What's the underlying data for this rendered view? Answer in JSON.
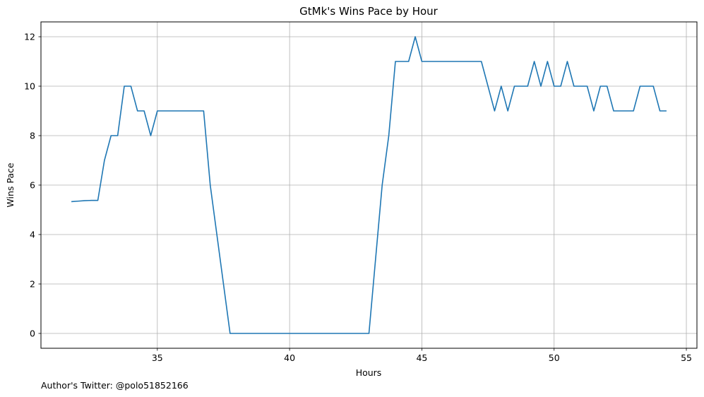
{
  "footer": {
    "text": "Author's Twitter: @polo51852166"
  },
  "chart_data": {
    "type": "line",
    "title": "GtMk's Wins Pace by Hour",
    "xlabel": "Hours",
    "ylabel": "Wins Pace",
    "xlim": [
      30.6,
      55.4
    ],
    "ylim": [
      -0.6,
      12.6
    ],
    "xticks": [
      35,
      40,
      45,
      50,
      55
    ],
    "yticks": [
      0,
      2,
      4,
      6,
      8,
      10,
      12
    ],
    "grid": true,
    "color": "#1f77b4",
    "series": [
      {
        "x": [
          31.75,
          32.0,
          32.25,
          32.5,
          32.75,
          33.0,
          33.25,
          33.5,
          33.75,
          34.0,
          34.25,
          34.5,
          34.75,
          35.0,
          35.25,
          35.5,
          35.75,
          36.0,
          36.25,
          36.5,
          36.75,
          37.0,
          37.25,
          37.5,
          37.75,
          38.0,
          38.25,
          38.5,
          38.75,
          39.0,
          39.25,
          39.5,
          39.75,
          40.0,
          40.25,
          40.5,
          40.75,
          41.0,
          41.25,
          41.5,
          41.75,
          42.0,
          42.25,
          42.5,
          42.75,
          43.0,
          43.25,
          43.5,
          43.75,
          44.0,
          44.25,
          44.5,
          44.75,
          45.0,
          45.25,
          45.5,
          45.75,
          46.0,
          46.25,
          46.5,
          46.75,
          47.0,
          47.25,
          47.5,
          47.75,
          48.0,
          48.25,
          48.5,
          48.75,
          49.0,
          49.25,
          49.5,
          49.75,
          50.0,
          50.25,
          50.5,
          50.75,
          51.0,
          51.25,
          51.5,
          51.75,
          52.0,
          52.25,
          52.5,
          52.75,
          53.0,
          53.25,
          53.5,
          53.75,
          54.0,
          54.25
        ],
        "values": [
          5.33,
          5.35,
          5.37,
          5.38,
          5.38,
          7.0,
          8.0,
          8.0,
          10.0,
          10.0,
          9.0,
          9.0,
          8.0,
          9.0,
          9.0,
          9.0,
          9.0,
          9.0,
          9.0,
          9.0,
          9.0,
          6.0,
          4.0,
          2.0,
          0.0,
          0.0,
          0.0,
          0.0,
          0.0,
          0.0,
          0.0,
          0.0,
          0.0,
          0.0,
          0.0,
          0.0,
          0.0,
          0.0,
          0.0,
          0.0,
          0.0,
          0.0,
          0.0,
          0.0,
          0.0,
          0.0,
          3.0,
          6.0,
          8.0,
          11.0,
          11.0,
          11.0,
          12.0,
          11.0,
          11.0,
          11.0,
          11.0,
          11.0,
          11.0,
          11.0,
          11.0,
          11.0,
          11.0,
          10.0,
          9.0,
          10.0,
          9.0,
          10.0,
          10.0,
          10.0,
          11.0,
          10.0,
          11.0,
          10.0,
          10.0,
          11.0,
          10.0,
          10.0,
          10.0,
          9.0,
          10.0,
          10.0,
          9.0,
          9.0,
          9.0,
          9.0,
          10.0,
          10.0,
          10.0,
          9.0,
          9.0
        ]
      }
    ]
  }
}
